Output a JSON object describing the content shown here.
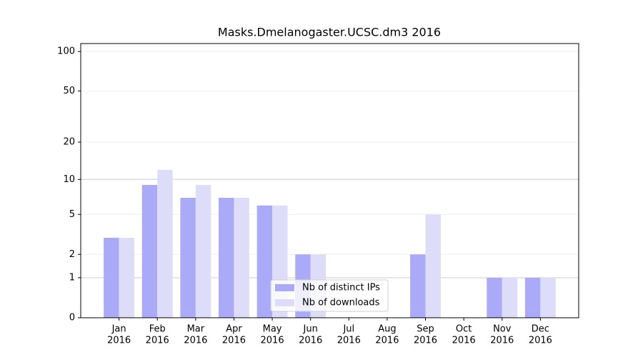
{
  "chart_data": {
    "type": "bar",
    "title": "Masks.Dmelanogaster.UCSC.dm3 2016",
    "categories": [
      [
        "Jan",
        "2016"
      ],
      [
        "Feb",
        "2016"
      ],
      [
        "Mar",
        "2016"
      ],
      [
        "Apr",
        "2016"
      ],
      [
        "May",
        "2016"
      ],
      [
        "Jun",
        "2016"
      ],
      [
        "Jul",
        "2016"
      ],
      [
        "Aug",
        "2016"
      ],
      [
        "Sep",
        "2016"
      ],
      [
        "Oct",
        "2016"
      ],
      [
        "Nov",
        "2016"
      ],
      [
        "Dec",
        "2016"
      ]
    ],
    "series": [
      {
        "name": "Nb of distinct IPs",
        "color": "#aaaaf8",
        "values": [
          3,
          9,
          7,
          7,
          6,
          2,
          0,
          0,
          2,
          0,
          1,
          1
        ]
      },
      {
        "name": "Nb of downloads",
        "color": "#ddddfa",
        "values": [
          3,
          12,
          9,
          7,
          6,
          2,
          0,
          0,
          5,
          0,
          1,
          1
        ]
      }
    ],
    "scale": "log1p",
    "ylim": [
      0,
      115
    ],
    "yticks": [
      0,
      1,
      2,
      5,
      10,
      20,
      50,
      100
    ],
    "grid": true,
    "legend": "lower center"
  }
}
